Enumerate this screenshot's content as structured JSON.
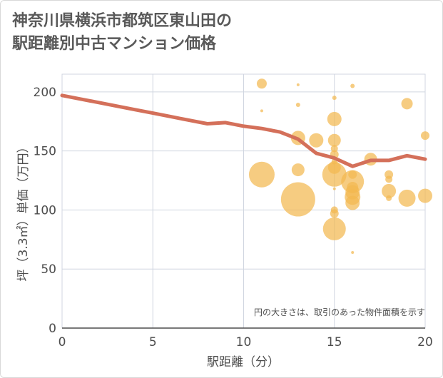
{
  "title_lines": [
    "神奈川県横浜市都筑区東山田の",
    "駅距離別中古マンション価格"
  ],
  "chart_data": {
    "type": "scatter",
    "xlabel": "駅距離（分）",
    "ylabel": "坪（3.3㎡）単価（万円）",
    "xlim": [
      0,
      20
    ],
    "ylim": [
      0,
      215
    ],
    "x_ticks": [
      0,
      5,
      10,
      15,
      20
    ],
    "y_ticks": [
      0,
      50,
      100,
      150,
      200
    ],
    "grid": true,
    "note": "円の大きさは、取引のあった物件面積を示す",
    "colors": {
      "bubble": "#f2b950",
      "line": "#d4705a",
      "grid": "#d0d6e0"
    },
    "trend": {
      "x": [
        0,
        1,
        2,
        3,
        4,
        5,
        6,
        7,
        8,
        9,
        10,
        11,
        12,
        13,
        14,
        15,
        16,
        17,
        18,
        19,
        20
      ],
      "y": [
        197,
        194,
        191,
        188,
        185,
        182,
        179,
        176,
        173,
        174,
        171,
        169,
        166,
        160,
        148,
        144,
        137,
        142,
        142,
        146,
        143
      ]
    },
    "points": [
      {
        "x": 11,
        "y": 207,
        "size": 7
      },
      {
        "x": 13,
        "y": 206,
        "size": 2
      },
      {
        "x": 16,
        "y": 205,
        "size": 3
      },
      {
        "x": 15,
        "y": 195,
        "size": 3
      },
      {
        "x": 13,
        "y": 189,
        "size": 3
      },
      {
        "x": 19,
        "y": 190,
        "size": 8
      },
      {
        "x": 11,
        "y": 184,
        "size": 2
      },
      {
        "x": 15,
        "y": 177,
        "size": 10
      },
      {
        "x": 20,
        "y": 163,
        "size": 6
      },
      {
        "x": 13,
        "y": 161,
        "size": 10
      },
      {
        "x": 14,
        "y": 159,
        "size": 10
      },
      {
        "x": 15,
        "y": 159,
        "size": 9
      },
      {
        "x": 15,
        "y": 152,
        "size": 5
      },
      {
        "x": 15,
        "y": 147,
        "size": 6
      },
      {
        "x": 17,
        "y": 143,
        "size": 9
      },
      {
        "x": 15,
        "y": 141,
        "size": 4
      },
      {
        "x": 15,
        "y": 136,
        "size": 9
      },
      {
        "x": 11,
        "y": 130,
        "size": 18
      },
      {
        "x": 13,
        "y": 134,
        "size": 9
      },
      {
        "x": 15,
        "y": 130,
        "size": 17
      },
      {
        "x": 16,
        "y": 130,
        "size": 6
      },
      {
        "x": 18,
        "y": 130,
        "size": 6
      },
      {
        "x": 18,
        "y": 126,
        "size": 5
      },
      {
        "x": 16,
        "y": 124,
        "size": 16
      },
      {
        "x": 16,
        "y": 119,
        "size": 8
      },
      {
        "x": 15,
        "y": 118,
        "size": 2
      },
      {
        "x": 16,
        "y": 115,
        "size": 10
      },
      {
        "x": 18,
        "y": 116,
        "size": 10
      },
      {
        "x": 16,
        "y": 111,
        "size": 11
      },
      {
        "x": 18,
        "y": 110,
        "size": 4
      },
      {
        "x": 16,
        "y": 106,
        "size": 10
      },
      {
        "x": 19,
        "y": 110,
        "size": 12
      },
      {
        "x": 20,
        "y": 112,
        "size": 10
      },
      {
        "x": 13,
        "y": 109,
        "size": 24
      },
      {
        "x": 15,
        "y": 100,
        "size": 5
      },
      {
        "x": 15,
        "y": 97,
        "size": 6
      },
      {
        "x": 15,
        "y": 84,
        "size": 16
      },
      {
        "x": 16,
        "y": 64,
        "size": 2
      }
    ]
  }
}
